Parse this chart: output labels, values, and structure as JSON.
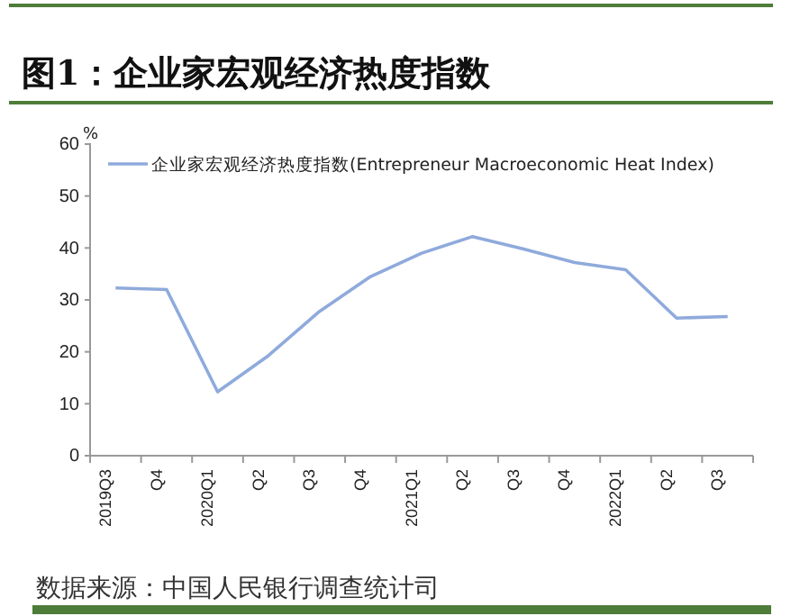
{
  "chart_data": {
    "type": "line",
    "title": "图1：企业家宏观经济热度指数",
    "ylabel": "%",
    "categories": [
      "2019Q3",
      "Q4",
      "2020Q1",
      "Q2",
      "Q3",
      "Q4",
      "2021Q1",
      "Q2",
      "Q3",
      "Q4",
      "2022Q1",
      "Q2",
      "Q3"
    ],
    "series": [
      {
        "name": "企业家宏观经济热度指数(Entrepreneur Macroeconomic Heat Index)",
        "color": "#8faadc",
        "values": [
          32.3,
          32.0,
          12.3,
          19.3,
          27.8,
          34.5,
          39.0,
          42.2,
          39.8,
          37.2,
          35.8,
          26.5,
          26.8
        ]
      }
    ],
    "ylim": [
      0,
      60
    ],
    "yticks": [
      0,
      10,
      20,
      30,
      40,
      50,
      60
    ],
    "grid": false,
    "legend": "top",
    "marker": "none",
    "line_style": "solid",
    "annotations": [
      "数据来源：中国人民银行调查统计司"
    ]
  }
}
